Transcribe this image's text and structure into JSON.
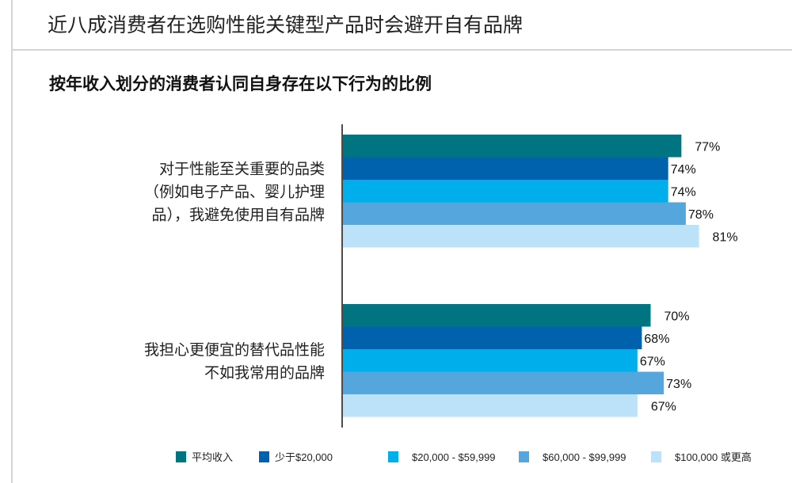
{
  "header": {
    "title": "近八成消费者在选购性能关键型产品时会避开自有品牌",
    "subtitle": "按年收入划分的消费者认同自身存在以下行为的比例"
  },
  "chart_data": {
    "type": "bar",
    "orientation": "horizontal",
    "title": "按年收入划分的消费者认同自身存在以下行为的比例",
    "categories": [
      [
        "对于性能至关重要的品类",
        "（例如电子产品、婴儿护理",
        "品），我避免使用自有品牌"
      ],
      [
        "我担心更便宜的替代品性能",
        "不如我常用的品牌"
      ]
    ],
    "value_suffix": "%",
    "xlim": [
      0,
      100
    ],
    "grid": false,
    "legend_position": "bottom",
    "series": [
      {
        "name": "平均收入",
        "color": "#007582",
        "values": [
          77,
          70
        ]
      },
      {
        "name": "少于$20,000",
        "color": "#0062AD",
        "values": [
          74,
          68
        ]
      },
      {
        "name": "$20,000 - $59,999",
        "color": "#00AEEB",
        "values": [
          74,
          67
        ]
      },
      {
        "name": "$60,000 - $99,999",
        "color": "#55A6DC",
        "values": [
          78,
          73
        ]
      },
      {
        "name": "$100,000 或更高",
        "color": "#BBE2F8",
        "values": [
          81,
          67
        ]
      }
    ]
  }
}
